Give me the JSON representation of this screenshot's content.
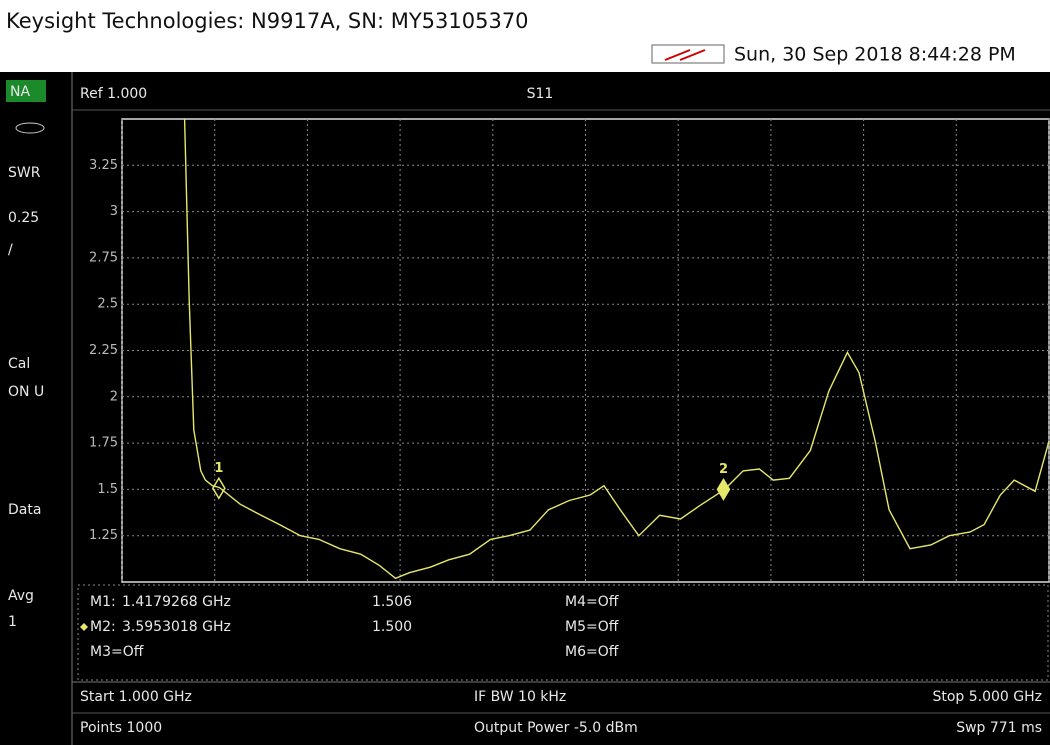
{
  "header": {
    "title": "Keysight Technologies: N9917A, SN: MY53105370",
    "datetime": "Sun, 30 Sep 2018 8:44:28 PM"
  },
  "side_panel": {
    "mode": "NA",
    "format": "SWR",
    "scale": "0.25",
    "scale_unit": "/",
    "cal": "Cal",
    "cal_state": "ON U",
    "trace": "Data",
    "avg": "Avg",
    "avg_count": "1"
  },
  "chart_data": {
    "type": "line",
    "reference": "Ref 1.000",
    "title": "S11",
    "x": [
      1.27,
      1.29,
      1.31,
      1.34,
      1.36,
      1.39,
      1.42,
      1.51,
      1.6,
      1.68,
      1.77,
      1.85,
      1.94,
      2.03,
      2.11,
      2.18,
      2.24,
      2.33,
      2.41,
      2.5,
      2.59,
      2.67,
      2.76,
      2.84,
      2.93,
      3.02,
      3.08,
      3.15,
      3.23,
      3.32,
      3.41,
      3.49,
      3.6,
      3.68,
      3.75,
      3.81,
      3.88,
      3.97,
      4.05,
      4.13,
      4.18,
      4.25,
      4.31,
      4.4,
      4.49,
      4.57,
      4.66,
      4.72,
      4.79,
      4.85,
      4.94,
      5.0
    ],
    "series": [
      {
        "name": "S11",
        "color": "#e6e66a",
        "values": [
          3.5,
          2.52,
          1.82,
          1.6,
          1.55,
          1.52,
          1.51,
          1.42,
          1.36,
          1.31,
          1.25,
          1.23,
          1.18,
          1.15,
          1.09,
          1.02,
          1.05,
          1.08,
          1.12,
          1.15,
          1.23,
          1.25,
          1.28,
          1.39,
          1.44,
          1.47,
          1.52,
          1.39,
          1.25,
          1.36,
          1.34,
          1.41,
          1.5,
          1.6,
          1.61,
          1.55,
          1.56,
          1.71,
          2.03,
          2.24,
          2.13,
          1.76,
          1.39,
          1.18,
          1.2,
          1.25,
          1.27,
          1.31,
          1.47,
          1.55,
          1.49,
          1.76
        ]
      }
    ],
    "xlim": [
      1,
      5
    ],
    "ylim": [
      1,
      3.5
    ],
    "xticks": [
      1,
      1.4,
      1.8,
      2.2,
      2.6,
      3,
      3.4,
      3.8,
      4.2,
      4.6,
      5
    ],
    "yticks": [
      1.25,
      1.5,
      1.75,
      2,
      2.25,
      2.5,
      2.75,
      3,
      3.25
    ],
    "grid": true,
    "markers": [
      {
        "id": "1",
        "name": "M1:",
        "freq": {
          "value": 1.4179268,
          "label": "1.4179268 GHz"
        },
        "value": 1.506
      },
      {
        "id": "2",
        "name": "M2:",
        "freq": {
          "value": 3.5953018,
          "label": "3.5953018 GHz"
        },
        "value": {
          "value": 1.5,
          "label": "1.500"
        }
      }
    ],
    "markers_off": [
      "M3=Off",
      "M4=Off",
      "M5=Off",
      "M6=Off"
    ]
  },
  "footer": {
    "start": "Start 1.000 GHz",
    "ifbw": "IF BW 10 kHz",
    "stop": "Stop 5.000 GHz",
    "points": "Points 1000",
    "power": "Output Power -5.0 dBm",
    "sweep": "Swp 771 ms"
  }
}
